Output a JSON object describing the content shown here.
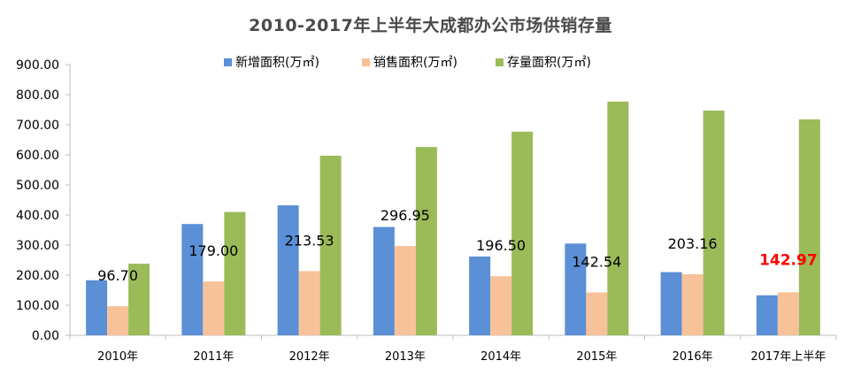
{
  "chart_data": {
    "type": "bar",
    "title": "2010-2017年上半年大成都办公市场供销存量",
    "xlabel": "",
    "ylabel": "",
    "categories": [
      "2010年",
      "2011年",
      "2012年",
      "2013年",
      "2014年",
      "2015年",
      "2016年",
      "2017年上半年"
    ],
    "ylim": [
      0,
      900
    ],
    "yticks": [
      "0.00",
      "100.00",
      "200.00",
      "300.00",
      "400.00",
      "500.00",
      "600.00",
      "700.00",
      "800.00",
      "900.00"
    ],
    "grid": false,
    "legend_position": "top-center",
    "series": [
      {
        "name": "新增面积(万㎡)",
        "color": "#5b8fd6",
        "values": [
          183,
          370,
          432,
          360,
          262,
          305,
          210,
          133
        ]
      },
      {
        "name": "销售面积(万㎡)",
        "color": "#f7c299",
        "values": [
          96.7,
          179.0,
          213.53,
          296.95,
          196.5,
          142.54,
          203.16,
          142.97
        ]
      },
      {
        "name": "存量面积(万㎡)",
        "color": "#9bbb59",
        "values": [
          238,
          410,
          597,
          626,
          677,
          777,
          747,
          718
        ]
      }
    ],
    "data_labels": [
      {
        "text": "96.70",
        "category_index": 0,
        "highlight": false
      },
      {
        "text": "179.00",
        "category_index": 1,
        "highlight": false
      },
      {
        "text": "213.53",
        "category_index": 2,
        "highlight": false
      },
      {
        "text": "296.95",
        "category_index": 3,
        "highlight": false
      },
      {
        "text": "196.50",
        "category_index": 4,
        "highlight": false
      },
      {
        "text": "142.54",
        "category_index": 5,
        "highlight": false
      },
      {
        "text": "203.16",
        "category_index": 6,
        "highlight": false
      },
      {
        "text": "142.97",
        "category_index": 7,
        "highlight": true
      }
    ],
    "highlight_color": "#ff0000"
  }
}
